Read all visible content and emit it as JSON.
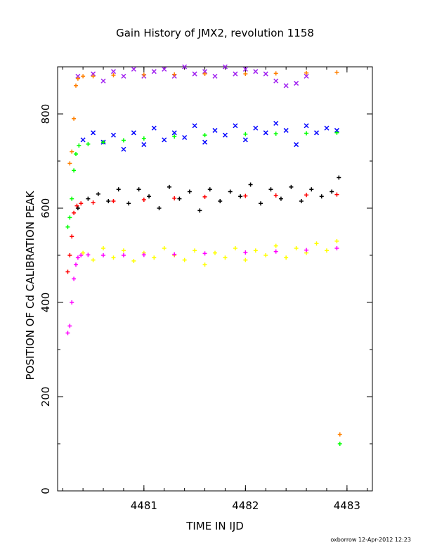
{
  "chart_data": {
    "type": "scatter",
    "title": "Gain History of JMX2, revolution 1158",
    "xlabel": "TIME IN IJD",
    "ylabel": "POSITION OF Cd CALIBRATION PEAK",
    "xlim": [
      4480.15,
      4483.25
    ],
    "ylim": [
      0,
      900
    ],
    "x_ticks": [
      4481,
      4482,
      4483
    ],
    "y_ticks": [
      0,
      200,
      400,
      600,
      800
    ],
    "grid": false,
    "legend": "none",
    "footer": "oxborrow 12-Apr-2012 12:23",
    "series": [
      {
        "color": "#a020f0",
        "marker": "x",
        "x": [
          4480.35,
          4480.5,
          4480.6,
          4480.7,
          4480.8,
          4480.9,
          4481.0,
          4481.1,
          4481.2,
          4481.3,
          4481.4,
          4481.5,
          4481.6,
          4481.7,
          4481.8,
          4481.9,
          4482.0,
          4482.1,
          4482.2,
          4482.3,
          4482.4,
          4482.5,
          4482.6
        ],
        "y": [
          880,
          885,
          870,
          890,
          880,
          895,
          880,
          890,
          895,
          880,
          900,
          885,
          890,
          880,
          900,
          885,
          895,
          890,
          885,
          870,
          860,
          865,
          880
        ]
      },
      {
        "color": "#ff8000",
        "marker": "+",
        "x": [
          4480.27,
          4480.29,
          4480.31,
          4480.33,
          4480.35,
          4480.4,
          4480.5,
          4480.7,
          4481.0,
          4481.3,
          4481.6,
          4482.0,
          4482.3,
          4482.6,
          4482.9,
          4482.93
        ],
        "y": [
          695,
          720,
          790,
          860,
          875,
          880,
          880,
          882,
          883,
          884,
          885,
          885,
          886,
          887,
          888,
          120
        ]
      },
      {
        "color": "#0000ff",
        "marker": "x",
        "x": [
          4480.4,
          4480.5,
          4480.6,
          4480.7,
          4480.8,
          4480.9,
          4481.0,
          4481.1,
          4481.2,
          4481.3,
          4481.4,
          4481.5,
          4481.6,
          4481.7,
          4481.8,
          4481.9,
          4482.0,
          4482.1,
          4482.2,
          4482.3,
          4482.4,
          4482.5,
          4482.6,
          4482.7,
          4482.8,
          4482.9
        ],
        "y": [
          745,
          760,
          740,
          755,
          725,
          760,
          735,
          770,
          745,
          760,
          750,
          775,
          740,
          765,
          755,
          775,
          745,
          770,
          760,
          780,
          765,
          735,
          775,
          760,
          770,
          765
        ]
      },
      {
        "color": "#00ff00",
        "marker": "+",
        "x": [
          4480.25,
          4480.27,
          4480.29,
          4480.31,
          4480.33,
          4480.36,
          4480.45,
          4480.6,
          4480.8,
          4481.0,
          4481.3,
          4481.6,
          4482.0,
          4482.3,
          4482.6,
          4482.9,
          4482.93
        ],
        "y": [
          560,
          580,
          620,
          680,
          715,
          733,
          736,
          740,
          744,
          748,
          752,
          755,
          757,
          758,
          759,
          760,
          100
        ]
      },
      {
        "color": "#000000",
        "marker": "+",
        "x": [
          4480.35,
          4480.45,
          4480.55,
          4480.65,
          4480.75,
          4480.85,
          4480.95,
          4481.05,
          4481.15,
          4481.25,
          4481.35,
          4481.45,
          4481.55,
          4481.65,
          4481.75,
          4481.85,
          4481.95,
          4482.05,
          4482.15,
          4482.25,
          4482.35,
          4482.45,
          4482.55,
          4482.65,
          4482.75,
          4482.85,
          4482.92
        ],
        "y": [
          600,
          620,
          630,
          615,
          640,
          610,
          640,
          625,
          600,
          645,
          620,
          635,
          595,
          640,
          615,
          635,
          625,
          650,
          610,
          640,
          620,
          645,
          615,
          640,
          625,
          635,
          665
        ]
      },
      {
        "color": "#ff0000",
        "marker": "+",
        "x": [
          4480.25,
          4480.27,
          4480.29,
          4480.31,
          4480.34,
          4480.38,
          4480.5,
          4480.7,
          4481.0,
          4481.3,
          4481.6,
          4482.0,
          4482.3,
          4482.6,
          4482.9
        ],
        "y": [
          465,
          500,
          540,
          590,
          605,
          610,
          612,
          615,
          618,
          621,
          624,
          626,
          627,
          628,
          629
        ]
      },
      {
        "color": "#ffff00",
        "marker": "+",
        "x": [
          4480.4,
          4480.5,
          4480.6,
          4480.7,
          4480.8,
          4480.9,
          4481.0,
          4481.1,
          4481.2,
          4481.3,
          4481.4,
          4481.5,
          4481.6,
          4481.7,
          4481.8,
          4481.9,
          4482.0,
          4482.1,
          4482.2,
          4482.3,
          4482.4,
          4482.5,
          4482.6,
          4482.7,
          4482.8,
          4482.9
        ],
        "y": [
          505,
          490,
          515,
          495,
          510,
          488,
          505,
          495,
          515,
          500,
          490,
          510,
          480,
          505,
          495,
          515,
          490,
          510,
          500,
          520,
          495,
          515,
          505,
          525,
          510,
          530
        ]
      },
      {
        "color": "#ff00ff",
        "marker": "+",
        "x": [
          4480.25,
          4480.27,
          4480.29,
          4480.31,
          4480.33,
          4480.35,
          4480.38,
          4480.45,
          4480.6,
          4480.8,
          4481.0,
          4481.3,
          4481.6,
          4482.0,
          4482.3,
          4482.6,
          4482.9
        ],
        "y": [
          335,
          350,
          400,
          450,
          480,
          495,
          500,
          501,
          500,
          500,
          501,
          502,
          504,
          506,
          508,
          511,
          515
        ]
      }
    ]
  }
}
